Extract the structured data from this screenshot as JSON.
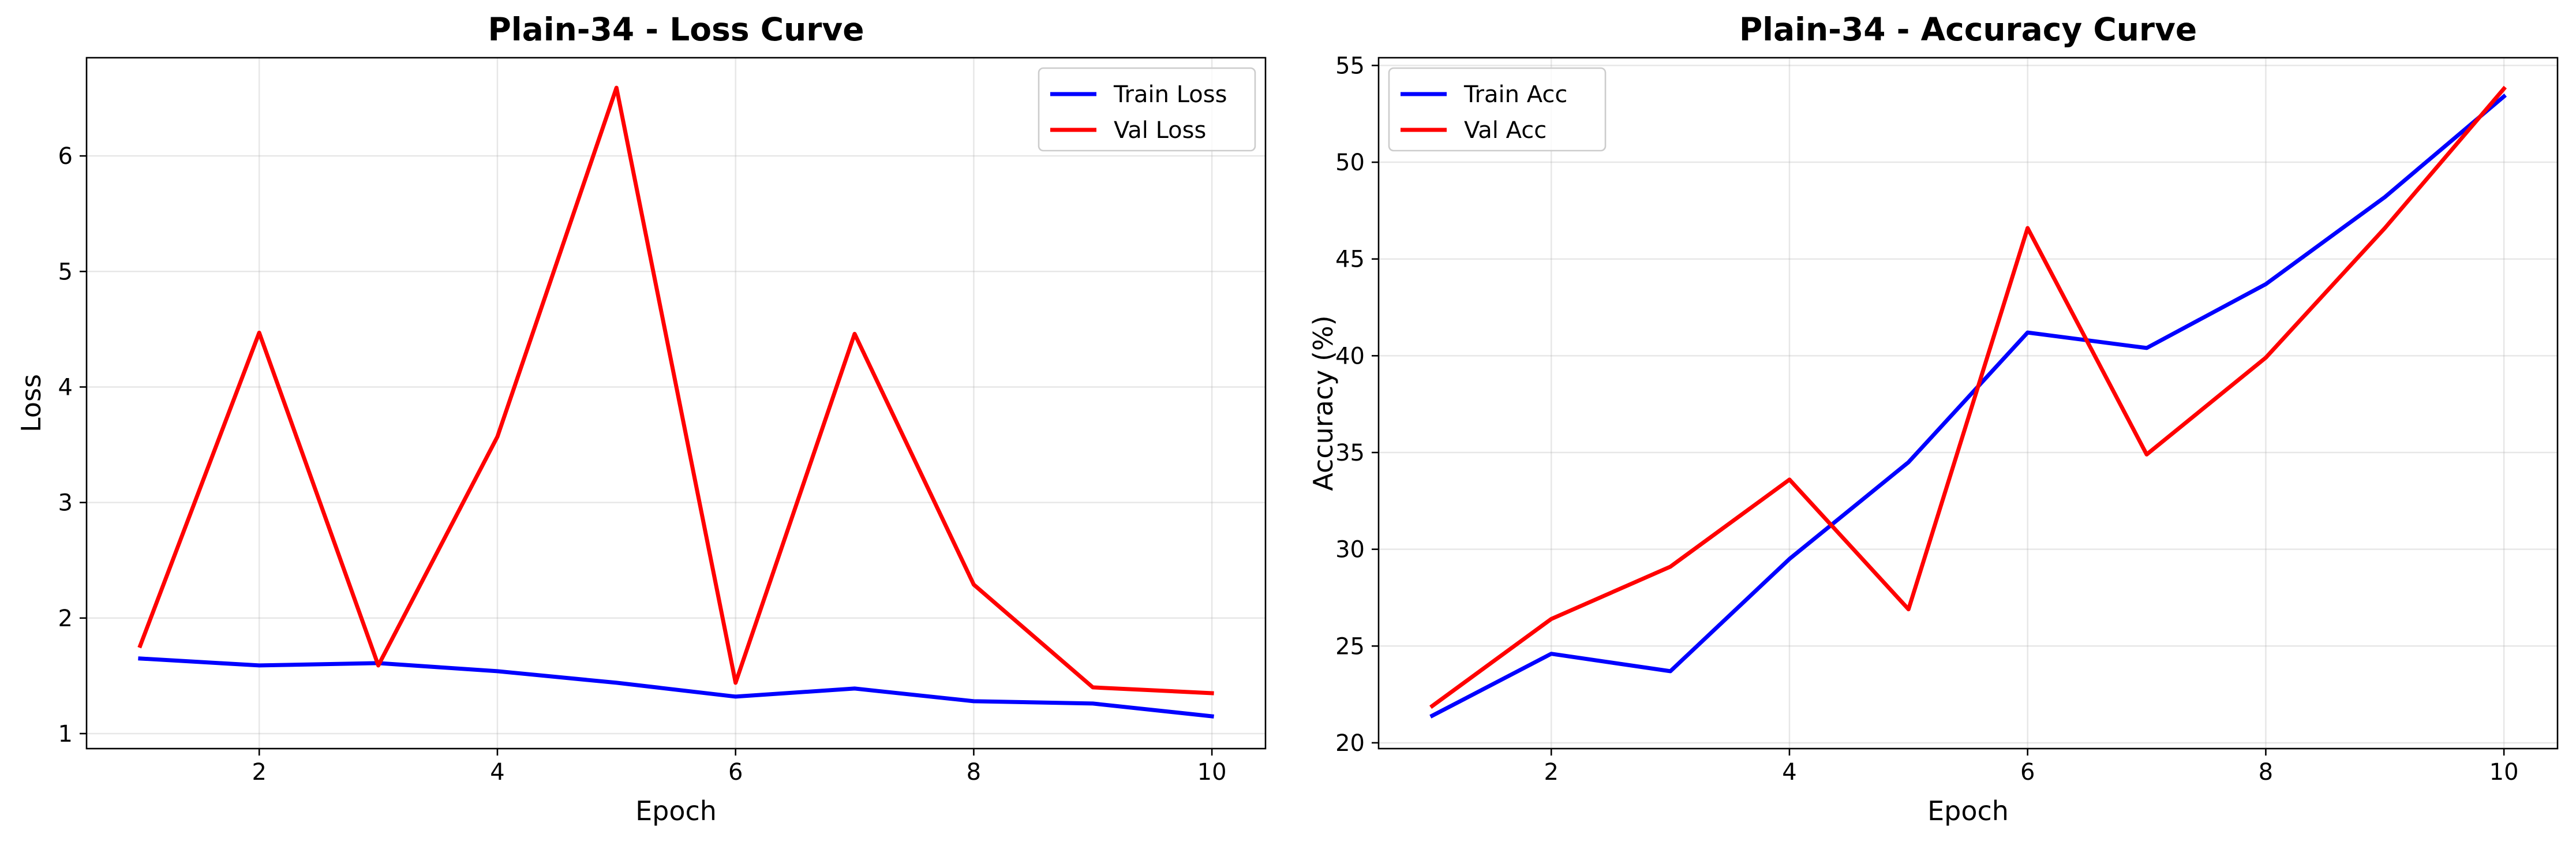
{
  "chart_data": [
    {
      "type": "line",
      "title": "Plain-34 - Loss Curve",
      "xlabel": "Epoch",
      "ylabel": "Loss",
      "xlim": [
        0.55,
        10.45
      ],
      "ylim": [
        0.87,
        6.85
      ],
      "xticks": [
        2,
        4,
        6,
        8,
        10
      ],
      "yticks": [
        1,
        2,
        3,
        4,
        5,
        6
      ],
      "grid": true,
      "legend_position": "upper right",
      "x": [
        1,
        2,
        3,
        4,
        5,
        6,
        7,
        8,
        9,
        10
      ],
      "series": [
        {
          "name": "Train Loss",
          "color": "#0000ff",
          "values": [
            1.65,
            1.59,
            1.61,
            1.54,
            1.44,
            1.32,
            1.39,
            1.28,
            1.26,
            1.15
          ]
        },
        {
          "name": "Val Loss",
          "color": "#ff0000",
          "values": [
            1.76,
            4.47,
            1.59,
            3.57,
            6.59,
            1.44,
            4.46,
            2.29,
            1.4,
            1.35
          ]
        }
      ]
    },
    {
      "type": "line",
      "title": "Plain-34 - Accuracy Curve",
      "xlabel": "Epoch",
      "ylabel": "Accuracy (%)",
      "xlim": [
        0.55,
        10.45
      ],
      "ylim": [
        19.7,
        55.4
      ],
      "xticks": [
        2,
        4,
        6,
        8,
        10
      ],
      "yticks": [
        20,
        25,
        30,
        35,
        40,
        45,
        50,
        55
      ],
      "grid": true,
      "legend_position": "upper left",
      "x": [
        1,
        2,
        3,
        4,
        5,
        6,
        7,
        8,
        9,
        10
      ],
      "series": [
        {
          "name": "Train Acc",
          "color": "#0000ff",
          "values": [
            21.4,
            24.6,
            23.7,
            29.5,
            34.5,
            41.2,
            40.4,
            43.7,
            48.2,
            53.4
          ]
        },
        {
          "name": "Val Acc",
          "color": "#ff0000",
          "values": [
            21.9,
            26.4,
            29.1,
            33.6,
            26.9,
            46.6,
            34.9,
            39.9,
            46.6,
            53.8
          ]
        }
      ]
    }
  ]
}
